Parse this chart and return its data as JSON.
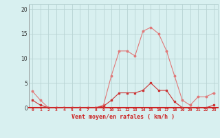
{
  "x": [
    0,
    1,
    2,
    3,
    4,
    5,
    6,
    7,
    8,
    9,
    10,
    11,
    12,
    13,
    14,
    15,
    16,
    17,
    18,
    19,
    20,
    21,
    22,
    23
  ],
  "y_mean": [
    1.5,
    0.5,
    0.0,
    0.0,
    0.0,
    0.0,
    0.0,
    0.0,
    0.0,
    0.3,
    1.5,
    3.0,
    3.0,
    3.0,
    3.5,
    5.0,
    3.5,
    3.5,
    1.2,
    0.0,
    0.0,
    0.0,
    0.0,
    0.5
  ],
  "y_gusts": [
    3.3,
    1.5,
    0.0,
    0.0,
    0.0,
    0.0,
    0.0,
    0.0,
    0.0,
    0.5,
    6.5,
    11.5,
    11.5,
    10.5,
    15.5,
    16.3,
    15.0,
    11.5,
    6.5,
    1.5,
    0.5,
    2.2,
    2.2,
    3.0
  ],
  "color_mean": "#e07878",
  "color_gusts": "#cc3333",
  "bg_color": "#d8f0f0",
  "grid_color": "#b8d4d4",
  "axis_color": "#cc2222",
  "xlabel": "Vent moyen/en rafales ( km/h )",
  "yticks": [
    0,
    5,
    10,
    15,
    20
  ],
  "xlim": [
    -0.5,
    23.5
  ],
  "ylim": [
    0,
    21
  ]
}
